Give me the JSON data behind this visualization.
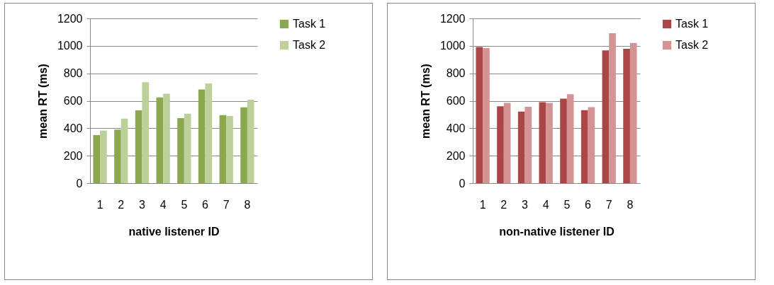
{
  "chart_data": [
    {
      "type": "bar",
      "categories": [
        "1",
        "2",
        "3",
        "4",
        "5",
        "6",
        "7",
        "8"
      ],
      "xlabel": "native listener ID",
      "ylabel": "mean RT (ms)",
      "ylim": [
        0,
        1200
      ],
      "yticks": [
        0,
        200,
        400,
        600,
        800,
        1000,
        1200
      ],
      "grid": "y",
      "legend": "right",
      "series": [
        {
          "name": "Task 1",
          "color": "#8ba84f",
          "values": [
            350,
            390,
            530,
            625,
            474,
            682,
            496,
            553
          ]
        },
        {
          "name": "Task 2",
          "color": "#bcd09a",
          "values": [
            383,
            470,
            735,
            651,
            506,
            726,
            489,
            608
          ]
        }
      ]
    },
    {
      "type": "bar",
      "categories": [
        "1",
        "2",
        "3",
        "4",
        "5",
        "6",
        "7",
        "8"
      ],
      "xlabel": "non-native listener ID",
      "ylabel": "mean RT (ms)",
      "ylim": [
        0,
        1200
      ],
      "yticks": [
        0,
        200,
        400,
        600,
        800,
        1000,
        1200
      ],
      "grid": "y",
      "legend": "right",
      "series": [
        {
          "name": "Task 1",
          "color": "#aa4645",
          "values": [
            992,
            560,
            522,
            590,
            615,
            532,
            967,
            979
          ]
        },
        {
          "name": "Task 2",
          "color": "#d49494",
          "values": [
            984,
            585,
            556,
            585,
            647,
            554,
            1092,
            1021
          ]
        }
      ]
    }
  ]
}
